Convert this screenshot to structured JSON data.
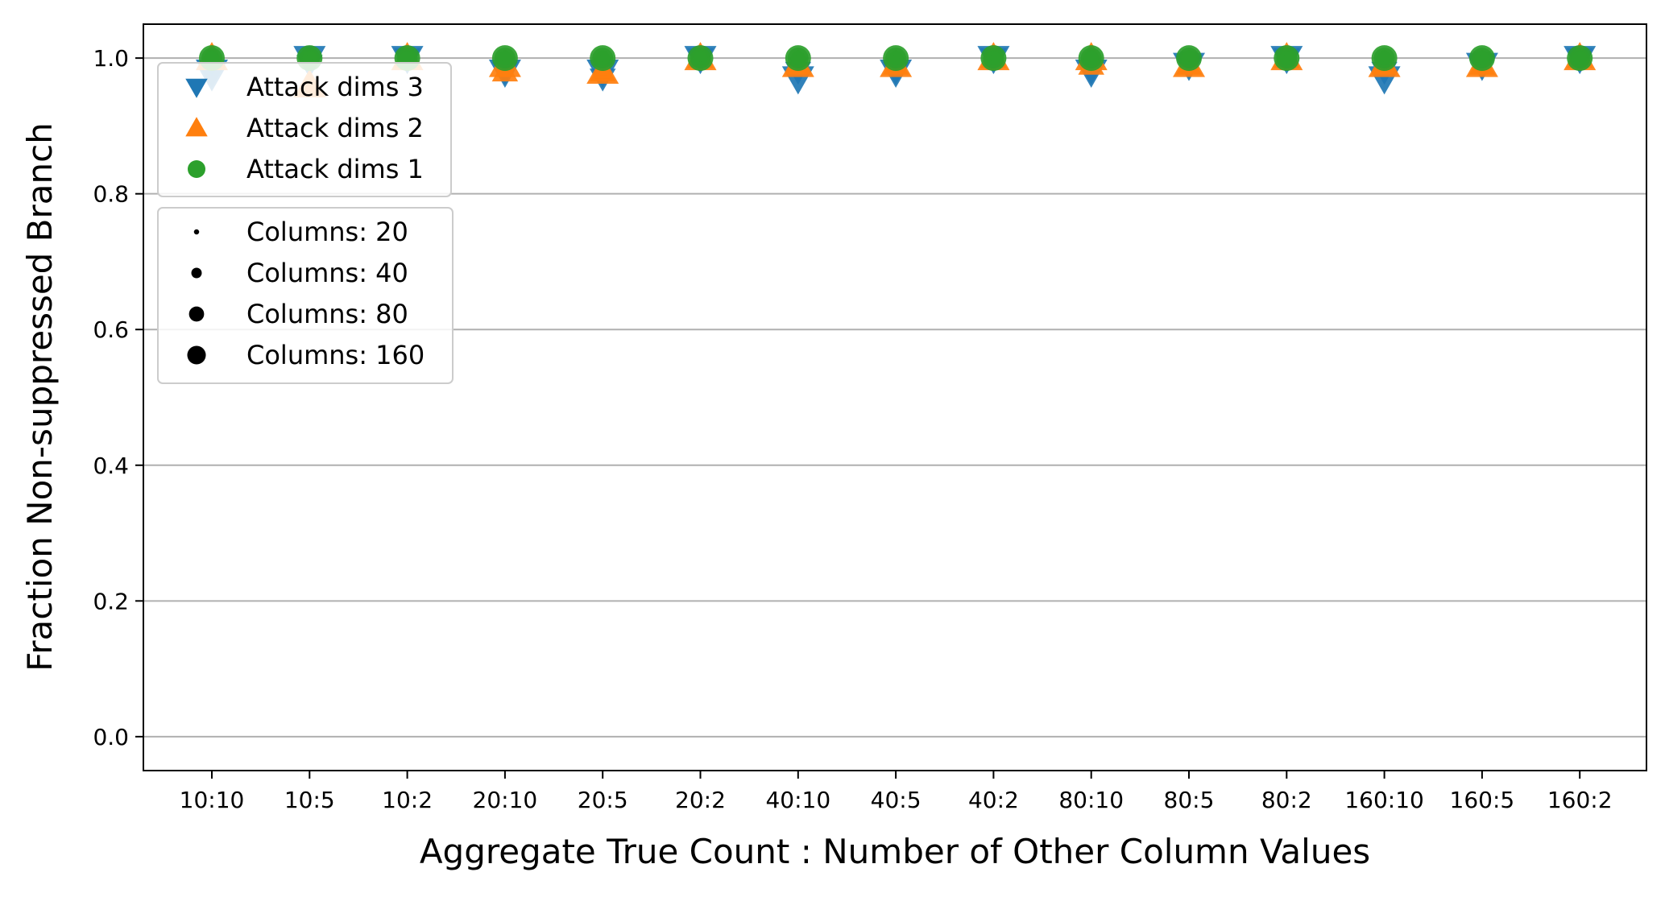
{
  "chart_data": {
    "type": "scatter",
    "title": "",
    "xlabel": "Aggregate True Count : Number of Other Column Values",
    "ylabel": "Fraction Non-suppressed Branch",
    "categories": [
      "10:10",
      "10:5",
      "10:2",
      "20:10",
      "20:5",
      "20:2",
      "40:10",
      "40:5",
      "40:2",
      "80:10",
      "80:5",
      "80:2",
      "160:10",
      "160:5",
      "160:2"
    ],
    "ylim": [
      -0.05,
      1.05
    ],
    "yticks": [
      "0.0",
      "0.2",
      "0.4",
      "0.6",
      "0.8",
      "1.0"
    ],
    "grid": "horizontal",
    "column_counts": [
      20,
      40,
      80,
      160
    ],
    "series": [
      {
        "name": "Attack dims 3",
        "marker": "triangle-down",
        "color": "#1f77b4",
        "values": {
          "20": [
            0.98,
            1.0,
            1.0,
            0.99,
            0.98,
            1.0,
            0.99,
            0.99,
            1.0,
            0.99,
            1.0,
            1.0,
            0.99,
            1.0,
            1.0
          ],
          "40": [
            0.99,
            1.0,
            1.0,
            0.99,
            0.99,
            1.0,
            0.99,
            0.99,
            1.0,
            0.99,
            1.0,
            1.0,
            0.99,
            1.0,
            1.0
          ],
          "80": [
            0.97,
            0.99,
            1.0,
            0.98,
            0.97,
            1.0,
            0.98,
            0.98,
            1.0,
            0.98,
            0.99,
            1.0,
            0.98,
            0.99,
            1.0
          ],
          "160": [
            0.98,
            1.0,
            1.0,
            0.98,
            0.98,
            1.0,
            0.97,
            0.98,
            1.0,
            0.98,
            0.99,
            1.0,
            0.97,
            0.99,
            1.0
          ]
        }
      },
      {
        "name": "Attack dims 2",
        "marker": "triangle-up",
        "color": "#ff7f0e",
        "values": {
          "20": [
            1.0,
            0.96,
            1.0,
            0.99,
            0.98,
            1.0,
            0.99,
            1.0,
            1.0,
            1.0,
            1.0,
            1.0,
            1.0,
            1.0,
            1.0
          ],
          "40": [
            1.0,
            0.96,
            1.0,
            0.99,
            0.98,
            1.0,
            0.99,
            0.99,
            1.0,
            1.0,
            1.0,
            1.0,
            0.99,
            1.0,
            1.0
          ],
          "80": [
            1.0,
            0.96,
            1.0,
            0.98,
            0.98,
            1.0,
            0.99,
            0.99,
            1.0,
            0.99,
            0.99,
            1.0,
            0.99,
            0.99,
            1.0
          ],
          "160": [
            1.0,
            0.96,
            1.0,
            0.99,
            0.98,
            1.0,
            0.99,
            0.99,
            1.0,
            1.0,
            0.99,
            1.0,
            0.99,
            0.99,
            1.0
          ]
        }
      },
      {
        "name": "Attack dims 1",
        "marker": "circle",
        "color": "#2ca02c",
        "values": {
          "20": [
            1.0,
            1.0,
            1.0,
            1.0,
            1.0,
            1.0,
            1.0,
            1.0,
            1.0,
            1.0,
            1.0,
            1.0,
            1.0,
            1.0,
            1.0
          ],
          "40": [
            1.0,
            1.0,
            1.0,
            1.0,
            1.0,
            1.0,
            1.0,
            1.0,
            1.0,
            1.0,
            1.0,
            1.0,
            1.0,
            1.0,
            1.0
          ],
          "80": [
            1.0,
            1.0,
            1.0,
            1.0,
            1.0,
            1.0,
            1.0,
            1.0,
            1.0,
            1.0,
            1.0,
            1.0,
            1.0,
            1.0,
            1.0
          ],
          "160": [
            1.0,
            1.0,
            1.0,
            1.0,
            1.0,
            1.0,
            1.0,
            1.0,
            1.0,
            1.0,
            1.0,
            1.0,
            1.0,
            1.0,
            1.0
          ]
        }
      }
    ],
    "legends": [
      {
        "placement": "upper-left",
        "entries": [
          {
            "label": "Attack dims 3",
            "marker": "triangle-down",
            "color": "#1f77b4"
          },
          {
            "label": "Attack dims 2",
            "marker": "triangle-up",
            "color": "#ff7f0e"
          },
          {
            "label": "Attack dims 1",
            "marker": "circle",
            "color": "#2ca02c"
          }
        ]
      },
      {
        "placement": "upper-left, below first legend",
        "entries": [
          {
            "label": "Columns: 20",
            "marker": "circle",
            "color": "#000000",
            "columns": 20
          },
          {
            "label": "Columns: 40",
            "marker": "circle",
            "color": "#000000",
            "columns": 40
          },
          {
            "label": "Columns: 80",
            "marker": "circle",
            "color": "#000000",
            "columns": 80
          },
          {
            "label": "Columns: 160",
            "marker": "circle",
            "color": "#000000",
            "columns": 160
          }
        ]
      }
    ]
  }
}
